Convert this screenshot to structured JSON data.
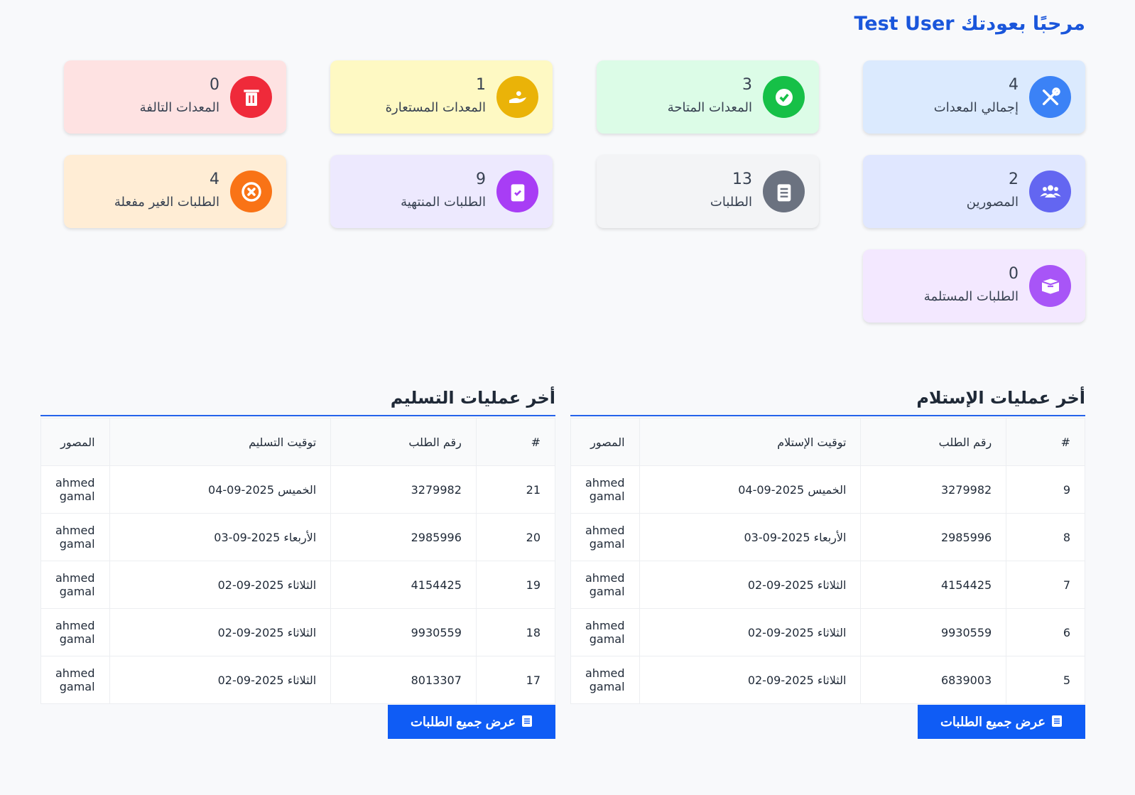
{
  "header": {
    "title": "مرحبًا بعودتك Test User"
  },
  "cards": [
    {
      "value": 4,
      "label": "إجمالي المعدات"
    },
    {
      "value": 3,
      "label": "المعدات المتاحة"
    },
    {
      "value": 1,
      "label": "المعدات المستعارة"
    },
    {
      "value": 0,
      "label": "المعدات التالفة"
    },
    {
      "value": 2,
      "label": "المصورين"
    },
    {
      "value": 13,
      "label": "الطلبات"
    },
    {
      "value": 9,
      "label": "الطلبات المنتهية"
    },
    {
      "value": 4,
      "label": "الطلبات الغير مفعلة"
    },
    {
      "value": 0,
      "label": "الطلبات المستلمة"
    }
  ],
  "tables": [
    {
      "title": "أخر عمليات الإستلام",
      "columns": [
        "#",
        "رقم الطلب",
        "توقيت الإستلام",
        "المصور"
      ],
      "rows": [
        [
          9,
          3279982,
          "الخميس 2025-09-04",
          "ahmed gamal"
        ],
        [
          8,
          2985996,
          "الأربعاء 2025-09-03",
          "ahmed gamal"
        ],
        [
          7,
          4154425,
          "الثلاثاء 2025-09-02",
          "ahmed gamal"
        ],
        [
          6,
          9930559,
          "الثلاثاء 2025-09-02",
          "ahmed gamal"
        ],
        [
          5,
          6839003,
          "الثلاثاء 2025-09-02",
          "ahmed gamal"
        ]
      ],
      "button": "عرض جميع الطلبات"
    },
    {
      "title": "أخر عمليات التسليم",
      "columns": [
        "#",
        "رقم الطلب",
        "توقيت التسليم",
        "المصور"
      ],
      "rows": [
        [
          21,
          3279982,
          "الخميس 2025-09-04",
          "ahmed gamal"
        ],
        [
          20,
          2985996,
          "الأربعاء 2025-09-03",
          "ahmed gamal"
        ],
        [
          19,
          4154425,
          "الثلاثاء 2025-09-02",
          "ahmed gamal"
        ],
        [
          18,
          9930559,
          "الثلاثاء 2025-09-02",
          "ahmed gamal"
        ],
        [
          17,
          8013307,
          "الثلاثاء 2025-09-02",
          "ahmed gamal"
        ]
      ],
      "button": "عرض جميع الطلبات"
    }
  ]
}
